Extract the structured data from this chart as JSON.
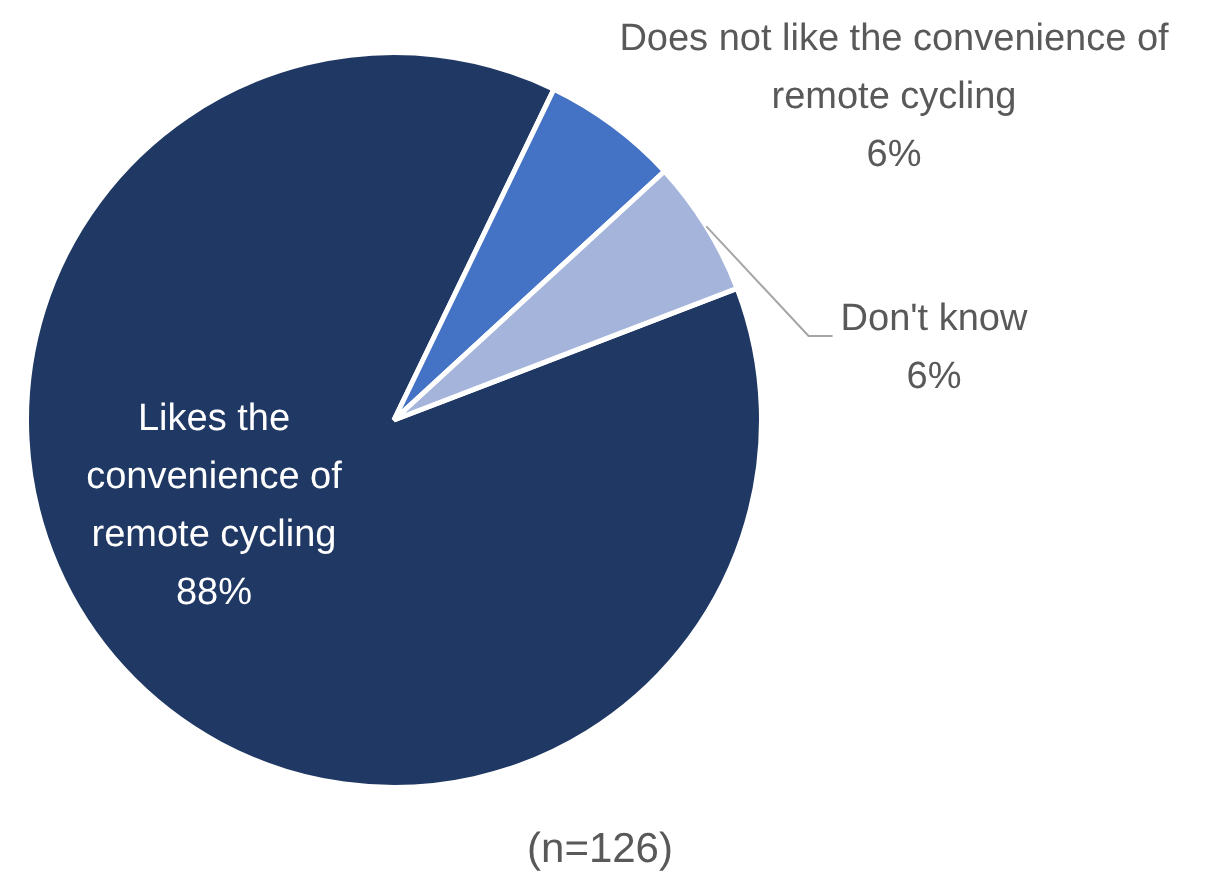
{
  "chart_data": {
    "type": "pie",
    "categories": [
      "Likes the convenience of remote cycling",
      "Does not like the convenience of remote cycling",
      "Don't know"
    ],
    "values": [
      88,
      6,
      6
    ],
    "colors": [
      "#203864",
      "#4472c4",
      "#a5b4db"
    ],
    "value_labels": [
      "88%",
      "6%",
      "6%"
    ],
    "annotations": [
      "(n=126)"
    ]
  }
}
